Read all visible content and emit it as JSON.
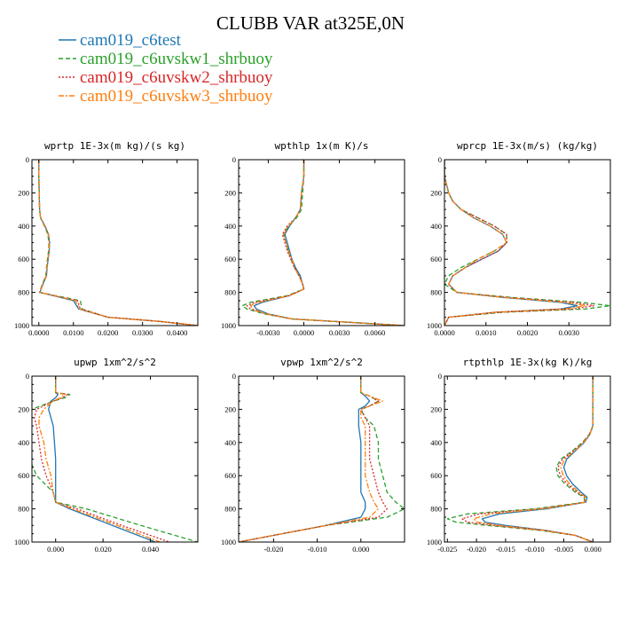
{
  "figure": {
    "title": "CLUBB VAR at325E,0N"
  },
  "legend": [
    {
      "name": "cam019_c6test",
      "color": "#1f77b4",
      "dash": "solid"
    },
    {
      "name": "cam019_c6uvskw1_shrbuoy",
      "color": "#2ca02c",
      "dash": "dash"
    },
    {
      "name": "cam019_c6uvskw2_shrbuoy",
      "color": "#d62728",
      "dash": "dot"
    },
    {
      "name": "cam019_c6uvskw3_shrbuoy",
      "color": "#ff7f0e",
      "dash": "dashdot"
    }
  ],
  "chart_data": [
    {
      "type": "line",
      "title": "wprtp  1E-3x(m kg)/(s kg)",
      "xlim": [
        -0.002,
        0.046
      ],
      "ylim": [
        1000,
        0
      ],
      "xticks": [
        0,
        0.01,
        0.02,
        0.03,
        0.04
      ],
      "xtick_labels": [
        "0.0000",
        "0.0100",
        "0.0200",
        "0.0300",
        "0.0400"
      ],
      "yticks": [
        0,
        200,
        400,
        600,
        800,
        1000
      ],
      "ytick_labels": [
        "0",
        "200",
        "400",
        "600",
        "800",
        "1000"
      ],
      "y": [
        0,
        100,
        200,
        300,
        350,
        400,
        450,
        500,
        550,
        600,
        650,
        700,
        750,
        800,
        850,
        900,
        950,
        975,
        1000
      ],
      "series": [
        {
          "values": [
            0,
            0,
            0.0001,
            0.0002,
            0.0005,
            0.0018,
            0.0028,
            0.0031,
            0.003,
            0.0027,
            0.0024,
            0.0022,
            0.0012,
            0.0003,
            0.01,
            0.0115,
            0.02,
            0.035,
            0.046
          ]
        },
        {
          "values": [
            0,
            0,
            0.0001,
            0.0002,
            0.0005,
            0.0016,
            0.0026,
            0.0029,
            0.0028,
            0.0025,
            0.0022,
            0.002,
            0.001,
            0.0002,
            0.012,
            0.0125,
            0.02,
            0.035,
            0.046
          ]
        },
        {
          "values": [
            0,
            0,
            0.0001,
            0.0002,
            0.0005,
            0.0017,
            0.0027,
            0.003,
            0.0029,
            0.0026,
            0.0023,
            0.0021,
            0.0011,
            0.0002,
            0.0112,
            0.012,
            0.02,
            0.035,
            0.046
          ]
        },
        {
          "values": [
            0,
            0,
            0.0001,
            0.0002,
            0.0005,
            0.0017,
            0.0027,
            0.003,
            0.0029,
            0.0026,
            0.0023,
            0.0021,
            0.0011,
            0.0003,
            0.0106,
            0.0118,
            0.02,
            0.035,
            0.046
          ]
        }
      ]
    },
    {
      "type": "line",
      "title": "wpthlp  1x(m K)/s",
      "xlim": [
        -0.0055,
        0.0085
      ],
      "ylim": [
        1000,
        0
      ],
      "xticks": [
        -0.003,
        0,
        0.003,
        0.006
      ],
      "xtick_labels": [
        "-0.0030",
        "0.0000",
        "0.0030",
        "0.0060"
      ],
      "yticks": [
        0,
        200,
        400,
        600,
        800,
        1000
      ],
      "ytick_labels": [
        "0",
        "200",
        "400",
        "600",
        "800",
        "1000"
      ],
      "y": [
        0,
        100,
        200,
        300,
        350,
        400,
        450,
        500,
        550,
        600,
        650,
        700,
        750,
        780,
        820,
        860,
        880,
        900,
        930,
        960,
        1000
      ],
      "series": [
        {
          "values": [
            0,
            0,
            -0.0002,
            -0.0003,
            -0.0007,
            -0.0012,
            -0.0016,
            -0.0014,
            -0.0012,
            -0.001,
            -0.0007,
            -0.0003,
            -0.0001,
            0.0,
            -0.0012,
            -0.0035,
            -0.0042,
            -0.004,
            -0.003,
            -0.001,
            0.0085
          ]
        },
        {
          "values": [
            0,
            0,
            -0.0001,
            -0.0002,
            -0.0006,
            -0.0013,
            -0.0017,
            -0.0015,
            -0.0013,
            -0.0011,
            -0.0008,
            -0.0004,
            -0.0001,
            0.0,
            -0.0014,
            -0.0045,
            -0.0052,
            -0.0048,
            -0.0033,
            -0.001,
            0.0085
          ]
        },
        {
          "values": [
            0,
            0,
            -0.0002,
            -0.0003,
            -0.0007,
            -0.0014,
            -0.0018,
            -0.0016,
            -0.0014,
            -0.0011,
            -0.0008,
            -0.0004,
            -0.0001,
            0.0,
            -0.0013,
            -0.0041,
            -0.0048,
            -0.0045,
            -0.0032,
            -0.001,
            0.0085
          ]
        },
        {
          "values": [
            0,
            0,
            -0.0002,
            -0.0003,
            -0.0007,
            -0.0013,
            -0.0017,
            -0.0015,
            -0.0013,
            -0.001,
            -0.0008,
            -0.0004,
            -0.0001,
            0.0,
            -0.0012,
            -0.0038,
            -0.0045,
            -0.0043,
            -0.0031,
            -0.001,
            0.0085
          ]
        }
      ]
    },
    {
      "type": "line",
      "title": "wprcp  1E-3x(m/s) (kg/kg)",
      "xlim": [
        0,
        0.004
      ],
      "ylim": [
        1000,
        0
      ],
      "xticks": [
        0,
        0.001,
        0.002,
        0.003
      ],
      "xtick_labels": [
        "0.0000",
        "0.0010",
        "0.0020",
        "0.0030"
      ],
      "yticks": [
        0,
        200,
        400,
        600,
        800,
        1000
      ],
      "ytick_labels": [
        "0",
        "200",
        "400",
        "600",
        "800",
        "1000"
      ],
      "y": [
        0,
        100,
        200,
        250,
        300,
        350,
        400,
        450,
        500,
        550,
        600,
        650,
        700,
        750,
        800,
        830,
        860,
        880,
        900,
        920,
        950,
        1000
      ],
      "series": [
        {
          "values": [
            0,
            0,
            0.0001,
            0.0002,
            0.0004,
            0.0007,
            0.0011,
            0.0014,
            0.0015,
            0.0013,
            0.0009,
            0.0005,
            0.0002,
            0.0001,
            0.0003,
            0.0014,
            0.0028,
            0.0032,
            0.0028,
            0.0012,
            0.0001,
            0
          ]
        },
        {
          "values": [
            0,
            0,
            0.0001,
            0.0002,
            0.0004,
            0.0008,
            0.0012,
            0.0015,
            0.0015,
            0.0012,
            0.0008,
            0.0004,
            0.0001,
            0.0,
            0.0003,
            0.0016,
            0.0033,
            0.004,
            0.0034,
            0.0014,
            0.0001,
            0
          ]
        },
        {
          "values": [
            0,
            0,
            0.0001,
            0.0002,
            0.0004,
            0.0008,
            0.0012,
            0.0015,
            0.0015,
            0.0013,
            0.0009,
            0.0005,
            0.0002,
            0.0001,
            0.0003,
            0.0015,
            0.0031,
            0.0036,
            0.0031,
            0.0013,
            0.0001,
            0
          ]
        },
        {
          "values": [
            0,
            0,
            0.0001,
            0.0002,
            0.0004,
            0.0007,
            0.0011,
            0.0014,
            0.0015,
            0.0012,
            0.0008,
            0.0005,
            0.0002,
            0.0001,
            0.0003,
            0.0014,
            0.0029,
            0.0034,
            0.0029,
            0.0012,
            0.0001,
            0
          ]
        }
      ]
    },
    {
      "type": "line",
      "title": "upwp  1xm^2/s^2",
      "xlim": [
        -0.01,
        0.06
      ],
      "ylim": [
        1000,
        0
      ],
      "xticks": [
        0,
        0.02,
        0.04
      ],
      "xtick_labels": [
        "0.000",
        "0.020",
        "0.040"
      ],
      "yticks": [
        0,
        200,
        400,
        600,
        800,
        1000
      ],
      "ytick_labels": [
        "0",
        "200",
        "400",
        "600",
        "800",
        "1000"
      ],
      "y": [
        0,
        100,
        110,
        130,
        150,
        200,
        250,
        300,
        400,
        500,
        600,
        700,
        760,
        800,
        900,
        1000
      ],
      "series": [
        {
          "values": [
            0,
            0,
            0.001,
            0.0,
            -0.002,
            -0.003,
            -0.002,
            -0.001,
            -0.0005,
            0,
            0.0,
            0.0,
            0.0,
            0.006,
            0.024,
            0.042
          ]
        },
        {
          "values": [
            0,
            0,
            0.006,
            0.004,
            -0.001,
            -0.01,
            -0.012,
            -0.012,
            -0.012,
            -0.011,
            -0.008,
            -0.001,
            0.0,
            0.013,
            0.036,
            0.06
          ]
        },
        {
          "values": [
            0,
            0,
            0.005,
            0.003,
            -0.001,
            -0.008,
            -0.009,
            -0.008,
            -0.007,
            -0.006,
            -0.004,
            -0.001,
            0.0,
            0.009,
            0.028,
            0.048
          ]
        },
        {
          "values": [
            0,
            0,
            0.004,
            0.002,
            -0.001,
            -0.005,
            -0.007,
            -0.007,
            -0.005,
            -0.004,
            -0.002,
            -0.001,
            0.0,
            0.007,
            0.026,
            0.044
          ]
        }
      ]
    },
    {
      "type": "line",
      "title": "vpwp  1xm^2/s^2",
      "xlim": [
        -0.028,
        0.01
      ],
      "ylim": [
        1000,
        0
      ],
      "xticks": [
        -0.02,
        -0.01,
        0
      ],
      "xtick_labels": [
        "-0.020",
        "-0.010",
        "0.000"
      ],
      "yticks": [
        0,
        200,
        400,
        600,
        800,
        1000
      ],
      "ytick_labels": [
        "0",
        "200",
        "400",
        "600",
        "800",
        "1000"
      ],
      "y": [
        0,
        100,
        120,
        150,
        180,
        200,
        250,
        300,
        400,
        500,
        600,
        700,
        760,
        800,
        850,
        900,
        950,
        1000
      ],
      "series": [
        {
          "values": [
            0,
            0,
            0.001,
            0.002,
            0.001,
            -0.0005,
            -0.0005,
            -0.0005,
            0.0,
            0.0,
            0.0,
            0.0,
            0.001,
            0.001,
            0.0,
            -0.008,
            -0.018,
            -0.028
          ]
        },
        {
          "values": [
            0,
            0,
            0.002,
            0.004,
            0.002,
            0.0,
            0.001,
            0.003,
            0.004,
            0.004,
            0.005,
            0.006,
            0.008,
            0.01,
            0.006,
            -0.008,
            -0.018,
            -0.028
          ]
        },
        {
          "values": [
            0,
            0,
            0.002,
            0.004,
            0.002,
            0.0,
            0.001,
            0.002,
            0.002,
            0.002,
            0.003,
            0.004,
            0.005,
            0.006,
            0.004,
            -0.008,
            -0.018,
            -0.028
          ]
        },
        {
          "values": [
            0,
            0,
            0.002,
            0.005,
            0.002,
            0.0,
            0.0,
            0.001,
            0.001,
            0.001,
            0.001,
            0.002,
            0.003,
            0.004,
            0.002,
            -0.008,
            -0.018,
            -0.028
          ]
        }
      ]
    },
    {
      "type": "line",
      "title": "rtpthlp  1E-3x(kg K)/kg",
      "xlim": [
        -0.0255,
        0.003
      ],
      "ylim": [
        1000,
        0
      ],
      "xticks": [
        -0.025,
        -0.02,
        -0.015,
        -0.01,
        -0.005,
        0
      ],
      "xtick_labels": [
        "-0.025",
        "-0.020",
        "-0.015",
        "-0.010",
        "-0.005",
        "0.000"
      ],
      "yticks": [
        0,
        200,
        400,
        600,
        800,
        1000
      ],
      "ytick_labels": [
        "0",
        "200",
        "400",
        "600",
        "800",
        "1000"
      ],
      "y": [
        0,
        100,
        200,
        300,
        350,
        400,
        450,
        500,
        550,
        600,
        650,
        700,
        730,
        760,
        800,
        830,
        860,
        880,
        900,
        930,
        960,
        1000
      ],
      "series": [
        {
          "values": [
            0,
            0,
            0,
            0,
            -0.0005,
            -0.0015,
            -0.003,
            -0.0045,
            -0.005,
            -0.0045,
            -0.0035,
            -0.002,
            -0.001,
            -0.0012,
            -0.008,
            -0.016,
            -0.019,
            -0.0185,
            -0.015,
            -0.008,
            -0.003,
            0.0
          ]
        },
        {
          "values": [
            0,
            0,
            0,
            0,
            -0.0006,
            -0.0018,
            -0.0035,
            -0.0055,
            -0.0063,
            -0.006,
            -0.0048,
            -0.003,
            -0.0015,
            -0.0014,
            -0.01,
            -0.0215,
            -0.025,
            -0.0235,
            -0.018,
            -0.009,
            -0.003,
            0.0
          ]
        },
        {
          "values": [
            0,
            0,
            0,
            0,
            -0.0006,
            -0.0017,
            -0.0033,
            -0.0052,
            -0.006,
            -0.0056,
            -0.0044,
            -0.0027,
            -0.0013,
            -0.0013,
            -0.0093,
            -0.0195,
            -0.0225,
            -0.0215,
            -0.017,
            -0.0085,
            -0.003,
            0.0
          ]
        },
        {
          "values": [
            0,
            0,
            0,
            0,
            -0.0005,
            -0.0016,
            -0.0031,
            -0.0048,
            -0.0055,
            -0.0051,
            -0.004,
            -0.0024,
            -0.0012,
            -0.0012,
            -0.0085,
            -0.0175,
            -0.0205,
            -0.0198,
            -0.016,
            -0.0082,
            -0.003,
            0.0
          ]
        }
      ]
    }
  ]
}
